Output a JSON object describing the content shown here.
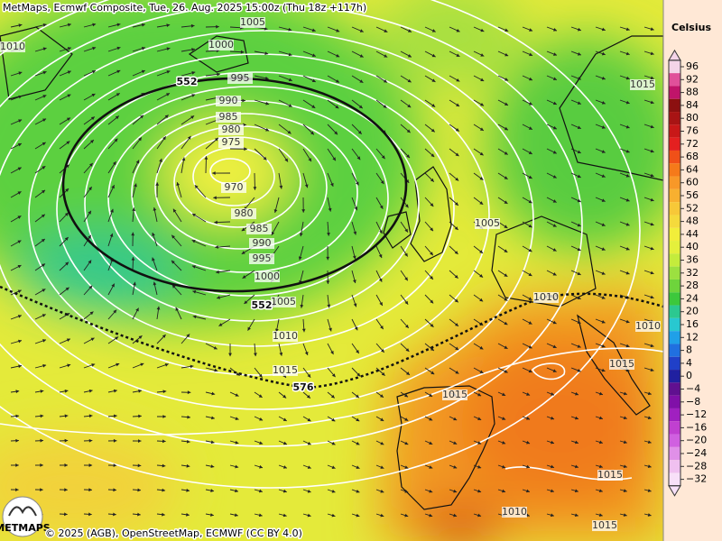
{
  "header": {
    "title": "MetMaps, Ecmwf Composite, Tue, 26. Aug. 2025 15:00z (Thu 18z +117h)"
  },
  "footer": {
    "copyright": "© 2025 (AGB), OpenStreetMap, ECMWF (CC BY 4.0)",
    "logo": "METMAPS"
  },
  "legend": {
    "title": "Celsius",
    "items": [
      {
        "label": "96",
        "color": "#f4d4e8"
      },
      {
        "label": "92",
        "color": "#e0509a"
      },
      {
        "label": "88",
        "color": "#c0146a"
      },
      {
        "label": "84",
        "color": "#8c1010"
      },
      {
        "label": "80",
        "color": "#a81414"
      },
      {
        "label": "76",
        "color": "#c81818"
      },
      {
        "label": "72",
        "color": "#e42020"
      },
      {
        "label": "68",
        "color": "#f05018"
      },
      {
        "label": "64",
        "color": "#f57a1a"
      },
      {
        "label": "60",
        "color": "#f89828"
      },
      {
        "label": "56",
        "color": "#f8b030"
      },
      {
        "label": "52",
        "color": "#f7c838"
      },
      {
        "label": "48",
        "color": "#f5da3c"
      },
      {
        "label": "44",
        "color": "#f2ee3a"
      },
      {
        "label": "40",
        "color": "#e4f03c"
      },
      {
        "label": "36",
        "color": "#c4ec3c"
      },
      {
        "label": "32",
        "color": "#9ce040"
      },
      {
        "label": "28",
        "color": "#6ed43c"
      },
      {
        "label": "24",
        "color": "#3cc83c"
      },
      {
        "label": "20",
        "color": "#2cc890"
      },
      {
        "label": "16",
        "color": "#28c8d0"
      },
      {
        "label": "12",
        "color": "#20a0e8"
      },
      {
        "label": "8",
        "color": "#2070e0"
      },
      {
        "label": "4",
        "color": "#2040c8"
      },
      {
        "label": "0",
        "color": "#2020a0"
      },
      {
        "label": "−4",
        "color": "#601090"
      },
      {
        "label": "−8",
        "color": "#8010a8"
      },
      {
        "label": "−12",
        "color": "#a020c0"
      },
      {
        "label": "−16",
        "color": "#c040d0"
      },
      {
        "label": "−20",
        "color": "#d060e0"
      },
      {
        "label": "−24",
        "color": "#e090e8"
      },
      {
        "label": "−28",
        "color": "#f0c0f0"
      },
      {
        "label": "−32",
        "color": "#f8e0f8"
      }
    ]
  },
  "map": {
    "isobar_labels": [
      "1010",
      "1005",
      "1000",
      "995",
      "990",
      "985",
      "980",
      "975",
      "970",
      "980",
      "985",
      "990",
      "995",
      "1000",
      "1005",
      "1010",
      "1015",
      "1005",
      "1010",
      "1015",
      "1015",
      "1015",
      "1010",
      "1015",
      "1015",
      "1010"
    ],
    "height_labels": [
      "552",
      "552",
      "576"
    ]
  }
}
